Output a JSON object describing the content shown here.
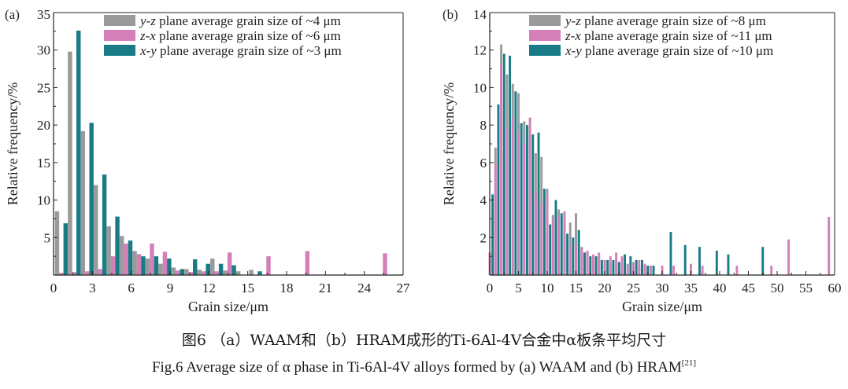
{
  "colors": {
    "yz": "#9a9a9a",
    "zx": "#d47fb8",
    "xy": "#187b86",
    "axis": "#222222"
  },
  "caption": {
    "cn": "图6  （a）WAAM和（b）HRAM成形的Ti-6Al-4V合金中α板条平均尺寸",
    "en": "Fig.6    Average size of α phase in Ti-6Al-4V alloys formed by (a) WAAM and (b) HRAM",
    "ref": "[21]"
  },
  "chart_data": [
    {
      "type": "bar",
      "panel_label": "(a)",
      "xlabel": "Grain size/μm",
      "ylabel": "Relative frequency/%",
      "xlim": [
        0,
        27
      ],
      "ylim": [
        0,
        35
      ],
      "xticks": [
        0,
        3,
        6,
        9,
        12,
        15,
        18,
        21,
        24,
        27
      ],
      "yticks": [
        5,
        10,
        15,
        20,
        25,
        30,
        35
      ],
      "legend_position": "top-right",
      "bar_width": 0.33,
      "series": [
        {
          "key": "yz",
          "name": "y-z plane average grain size of ~4 μm",
          "x": [
            0.27,
            1.27,
            2.27,
            3.27,
            4.27,
            5.27,
            6.27,
            7.27,
            8.27,
            9.27,
            10.27,
            11.27,
            12.27,
            13.27,
            14.27,
            15.27
          ],
          "values": [
            8.5,
            29.8,
            19.2,
            12.0,
            6.5,
            5.2,
            3.2,
            2.2,
            1.5,
            1.0,
            0.8,
            0.7,
            2.2,
            0.6,
            0.5,
            0.7
          ]
        },
        {
          "key": "zx",
          "name": "z-x plane average grain size of ~6 μm",
          "x": [
            0.6,
            1.6,
            2.6,
            3.6,
            4.6,
            5.6,
            6.6,
            7.6,
            8.6,
            9.6,
            10.6,
            11.6,
            12.6,
            13.6,
            16.6,
            19.6,
            25.6
          ],
          "values": [
            0.3,
            0.4,
            0.5,
            0.8,
            2.5,
            4.2,
            2.8,
            4.2,
            3.1,
            0.6,
            0.4,
            0.5,
            0.5,
            3.0,
            2.5,
            3.2,
            2.9
          ]
        },
        {
          "key": "xy",
          "name": "x-y plane average grain size of ~3 μm",
          "x": [
            0.93,
            1.93,
            2.93,
            3.93,
            4.93,
            5.93,
            6.93,
            7.93,
            8.93,
            9.93,
            10.93,
            11.93,
            12.93,
            13.93,
            15.93
          ],
          "values": [
            6.9,
            32.6,
            20.3,
            13.4,
            7.8,
            4.6,
            2.5,
            2.5,
            2.2,
            0.8,
            2.1,
            1.5,
            1.5,
            1.3,
            0.5
          ]
        }
      ]
    },
    {
      "type": "bar",
      "panel_label": "(b)",
      "xlabel": "Grain size/μm",
      "ylabel": "Relative frequency/%",
      "xlim": [
        0,
        60
      ],
      "ylim": [
        0,
        14
      ],
      "xticks": [
        0,
        5,
        10,
        15,
        20,
        25,
        30,
        35,
        40,
        45,
        50,
        55,
        60
      ],
      "yticks": [
        2,
        4,
        6,
        8,
        10,
        12,
        14
      ],
      "legend_position": "top-right",
      "bar_width": 0.4,
      "series": [
        {
          "key": "yz",
          "name": "y-z plane average grain size of ~8 μm",
          "x": [
            1,
            2,
            3,
            4,
            5,
            6,
            7,
            8,
            9,
            10,
            11,
            12,
            13,
            14,
            15,
            16,
            17,
            18,
            19,
            20,
            21,
            22,
            23,
            24,
            25,
            26,
            27,
            28
          ],
          "values": [
            6.8,
            12.3,
            10.7,
            10.2,
            9.7,
            8.2,
            7.8,
            6.5,
            6.3,
            4.6,
            3.2,
            3.5,
            3.0,
            2.8,
            3.3,
            1.5,
            1.3,
            1.0,
            1.0,
            0.8,
            0.7,
            0.8,
            0.6,
            0.6,
            0.7,
            0.5,
            0.5,
            0.5
          ]
        },
        {
          "key": "zx",
          "name": "z-x plane average grain size of ~11 μm",
          "x": [
            0,
            1,
            2,
            3,
            4,
            5,
            6,
            7,
            8,
            9,
            10,
            11,
            12,
            13,
            14,
            15,
            16,
            17,
            18,
            19,
            20,
            21,
            22,
            23,
            24,
            25,
            26,
            27,
            28,
            30,
            32,
            35,
            37,
            43,
            49,
            52,
            59
          ],
          "values": [
            1.2,
            6.0,
            11.2,
            7.8,
            8.4,
            7.7,
            7.0,
            8.4,
            4.4,
            3.8,
            4.2,
            3.0,
            3.2,
            3.4,
            1.6,
            1.6,
            1.4,
            1.3,
            1.1,
            1.2,
            0.8,
            1.0,
            1.2,
            1.0,
            0.5,
            0.6,
            0.8,
            0.6,
            0.5,
            0.5,
            0.5,
            0.6,
            0.5,
            0.5,
            0.5,
            1.9,
            3.1
          ]
        },
        {
          "key": "xy",
          "name": "x-y plane average grain size of ~10 μm",
          "x": [
            0.5,
            1.5,
            2.5,
            3.5,
            4.5,
            5.5,
            6.5,
            7.5,
            8.5,
            9.5,
            10.5,
            11.5,
            12.5,
            13.5,
            14.5,
            15.5,
            16.5,
            17.5,
            18.5,
            19.5,
            20.5,
            21.5,
            22.5,
            23.5,
            24.5,
            25.5,
            26.5,
            27.5,
            28.5,
            31.5,
            34,
            36.5,
            39.5,
            41.5,
            47.5
          ],
          "values": [
            4.3,
            9.1,
            11.8,
            11.7,
            9.8,
            8.1,
            8.0,
            7.5,
            7.6,
            4.6,
            2.7,
            4.0,
            3.3,
            2.2,
            2.0,
            2.4,
            1.2,
            1.0,
            1.0,
            0.8,
            0.8,
            0.8,
            0.7,
            1.1,
            1.0,
            0.8,
            0.8,
            0.5,
            0.5,
            2.3,
            1.6,
            1.5,
            1.3,
            1.1,
            1.5
          ]
        }
      ]
    }
  ]
}
